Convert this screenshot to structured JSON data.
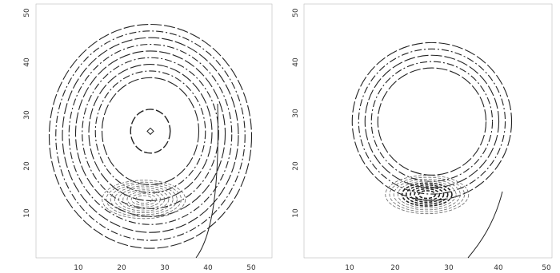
{
  "chart_data": [
    {
      "type": "contour",
      "panel": "left",
      "x_ticks": [
        "10",
        "20",
        "30",
        "40",
        "50"
      ],
      "y_ticks": [
        "10",
        "20",
        "30",
        "40",
        "50"
      ],
      "xlim": [
        0,
        50
      ],
      "ylim": [
        0,
        50
      ],
      "center": [
        26,
        26
      ],
      "inner_ring_radius": 4.5,
      "ring_radii": [
        11,
        12.5,
        14,
        15.5,
        17,
        18.5,
        20,
        21.5,
        23
      ],
      "marker": [
        26,
        26
      ],
      "local_contours_center": [
        24.5,
        12
      ],
      "grid": false
    },
    {
      "type": "contour",
      "panel": "right",
      "x_ticks": [
        "10",
        "20",
        "30",
        "40",
        "50"
      ],
      "y_ticks": [
        "10",
        "20",
        "30",
        "40",
        "50"
      ],
      "xlim": [
        0,
        50
      ],
      "ylim": [
        0,
        50
      ],
      "center": [
        26,
        28
      ],
      "ring_radii": [
        11,
        12.3,
        13.6,
        14.9,
        16.2
      ],
      "local_contours_center": [
        25,
        13
      ],
      "grid": false
    }
  ],
  "colors": {
    "ink": "#222222",
    "faint": "#666666",
    "background": "#ffffff"
  }
}
